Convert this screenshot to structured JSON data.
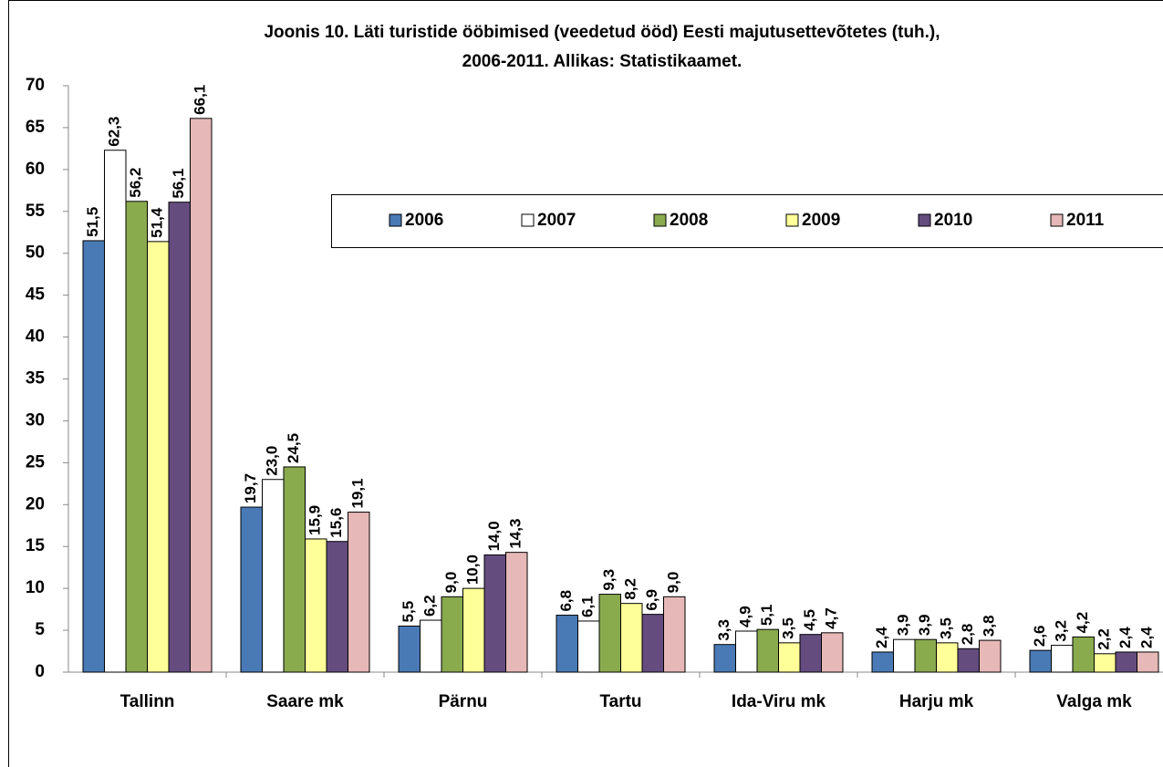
{
  "chart_data": {
    "type": "bar",
    "title": [
      "Joonis 10. Läti turistide ööbimised (veedetud ööd) Eesti majutusettevõtetes (tuh.),",
      "2006-2011. Allikas: Statistikaamet."
    ],
    "categories": [
      "Tallinn",
      "Saare mk",
      "Pärnu",
      "Tartu",
      "Ida-Viru mk",
      "Harju mk",
      "Valga mk"
    ],
    "series": [
      {
        "name": "2006",
        "color": "#4a7ab5",
        "values": [
          51.5,
          19.7,
          5.5,
          6.8,
          3.3,
          2.4,
          2.6
        ],
        "value_labels": [
          "51,5",
          "19,7",
          "5,5",
          "6,8",
          "3,3",
          "2,4",
          "2,6"
        ]
      },
      {
        "name": "2007",
        "color": "#ffffff",
        "values": [
          62.3,
          23.0,
          6.2,
          6.1,
          4.9,
          3.9,
          3.2
        ],
        "value_labels": [
          "62,3",
          "23,0",
          "6,2",
          "6,1",
          "4,9",
          "3,9",
          "3,2"
        ]
      },
      {
        "name": "2008",
        "color": "#8aaa4e",
        "values": [
          56.2,
          24.5,
          9.0,
          9.3,
          5.1,
          3.9,
          4.2
        ],
        "value_labels": [
          "56,2",
          "24,5",
          "9,0",
          "9,3",
          "5,1",
          "3,9",
          "4,2"
        ]
      },
      {
        "name": "2009",
        "color": "#ffff99",
        "values": [
          51.4,
          15.9,
          10.0,
          8.2,
          3.5,
          3.5,
          2.2
        ],
        "value_labels": [
          "51,4",
          "15,9",
          "10,0",
          "8,2",
          "3,5",
          "3,5",
          "2,2"
        ]
      },
      {
        "name": "2010",
        "color": "#644c7f",
        "values": [
          56.1,
          15.6,
          14.0,
          6.9,
          4.5,
          2.8,
          2.4
        ],
        "value_labels": [
          "56,1",
          "15,6",
          "14,0",
          "6,9",
          "4,5",
          "2,8",
          "2,4"
        ]
      },
      {
        "name": "2011",
        "color": "#e6b8b7",
        "values": [
          66.1,
          19.1,
          14.3,
          9.0,
          4.7,
          3.8,
          2.4
        ],
        "value_labels": [
          "66,1",
          "19,1",
          "14,3",
          "9,0",
          "4,7",
          "3,8",
          "2,4"
        ]
      }
    ],
    "ylim": [
      0,
      70
    ],
    "yticks": [
      0,
      5,
      10,
      15,
      20,
      25,
      30,
      35,
      40,
      45,
      50,
      55,
      60,
      65,
      70
    ],
    "grid": false
  }
}
